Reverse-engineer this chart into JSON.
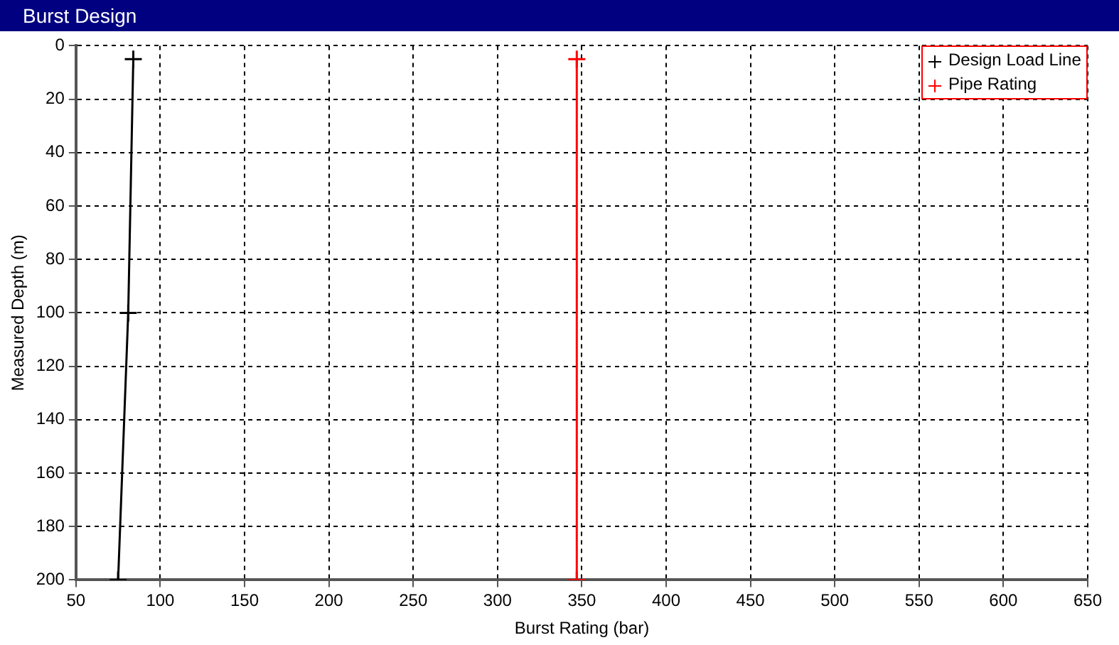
{
  "chart_data": {
    "type": "line",
    "title": "Burst Design",
    "xlabel": "Burst Rating (bar)",
    "ylabel": "Measured Depth (m)",
    "xlim": [
      50,
      650
    ],
    "xticks": [
      50,
      100,
      150,
      200,
      250,
      300,
      350,
      400,
      450,
      500,
      550,
      600,
      650
    ],
    "ylim": [
      200,
      0
    ],
    "yticks": [
      0,
      20,
      40,
      60,
      80,
      100,
      120,
      140,
      160,
      180,
      200
    ],
    "grid": true,
    "legend": "top right",
    "marker": "cross",
    "line_style": "solid",
    "series": [
      {
        "name": "Design Load Line",
        "color": "#000000",
        "x": [
          84,
          81,
          75
        ],
        "values": [
          5,
          100,
          200
        ]
      },
      {
        "name": "Pipe Rating",
        "color": "#ff0000",
        "x": [
          347,
          347
        ],
        "values": [
          5,
          200
        ]
      }
    ]
  }
}
